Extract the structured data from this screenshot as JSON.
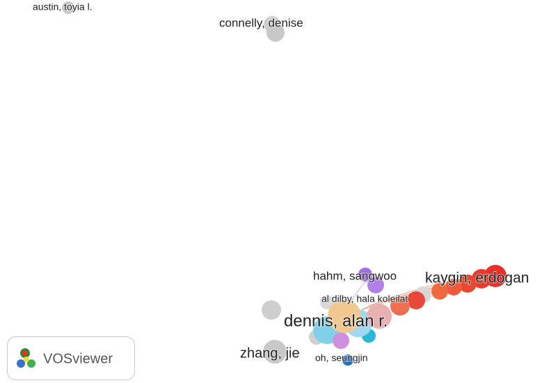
{
  "nodes": [
    {
      "label": "austin, toyia l."
    },
    {
      "label": "connelly, denise"
    },
    {
      "label": "hahm, sangwoo"
    },
    {
      "label": "kaygin, erdogan"
    },
    {
      "label": "al dilby, hala koleilat"
    },
    {
      "label": "dennis, alan r."
    },
    {
      "label": "zhang, jie"
    },
    {
      "label": "oh, seungjin"
    }
  ],
  "logo": {
    "text": "VOSviewer"
  }
}
